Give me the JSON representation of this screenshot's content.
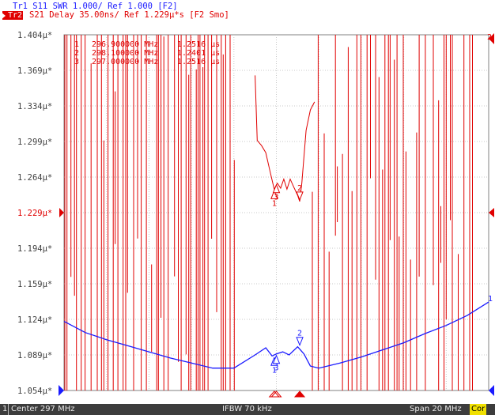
{
  "header": {
    "trace1": "Tr1 S11 SWR 1.000/ Ref 1.000 [F2]",
    "trace2_tag": "Tr2",
    "trace2": "S21 Delay 35.00ns/ Ref 1.229μ*s [F2 Smo]"
  },
  "y_axis": {
    "labels": [
      "1.404μ*",
      "1.369μ*",
      "1.334μ*",
      "1.299μ*",
      "1.264μ*",
      "1.229μ*",
      "1.194μ*",
      "1.159μ*",
      "1.124μ*",
      "1.089μ*",
      "1.054μ*"
    ],
    "ref_index": 5
  },
  "markers": {
    "table": [
      {
        "num": "1",
        "freq": "296.900000 MHz",
        "value": "1.2516 μs"
      },
      {
        "num": "2",
        "freq": "298.100000 MHz",
        "value": "1.2401 μs"
      },
      {
        "num": "3",
        "freq": "297.000000 MHz",
        "value": "1.2516 μs"
      }
    ]
  },
  "right_labels": {
    "trace2_ref": "2",
    "trace1_ref": "1"
  },
  "status": {
    "channel": "1",
    "center": "Center 297 MHz",
    "ifbw": "IFBW 70 kHz",
    "span": "Span 20 MHz",
    "cor": "Cor"
  },
  "chart_data": {
    "type": "line",
    "x_range_mhz": [
      287,
      307
    ],
    "series": [
      {
        "name": "Tr1 S11 SWR",
        "color": "#1a1aff",
        "x": [
          287,
          288,
          289,
          290,
          291,
          292,
          293,
          294,
          295,
          296,
          296.5,
          296.8,
          297,
          297.3,
          297.6,
          298,
          298.3,
          298.6,
          299,
          300,
          301,
          302,
          303,
          304,
          305,
          306,
          307
        ],
        "y": [
          1.122,
          1.111,
          1.104,
          1.098,
          1.092,
          1.086,
          1.081,
          1.076,
          1.076,
          1.089,
          1.096,
          1.088,
          1.09,
          1.092,
          1.089,
          1.097,
          1.09,
          1.078,
          1.076,
          1.081,
          1.087,
          1.094,
          1.101,
          1.11,
          1.118,
          1.128,
          1.141
        ]
      },
      {
        "name": "Tr2 S21 Delay",
        "color": "#e00000",
        "x": [
          296.0,
          296.1,
          296.3,
          296.5,
          296.7,
          296.9,
          297.05,
          297.2,
          297.35,
          297.5,
          297.65,
          297.8,
          298.0,
          298.1,
          298.2,
          298.4,
          298.6,
          298.8
        ],
        "y": [
          1.364,
          1.3,
          1.295,
          1.288,
          1.27,
          1.252,
          1.258,
          1.253,
          1.262,
          1.252,
          1.262,
          1.255,
          1.246,
          1.24,
          1.258,
          1.31,
          1.33,
          1.338
        ]
      }
    ],
    "y_labels_unit": "μ*"
  }
}
